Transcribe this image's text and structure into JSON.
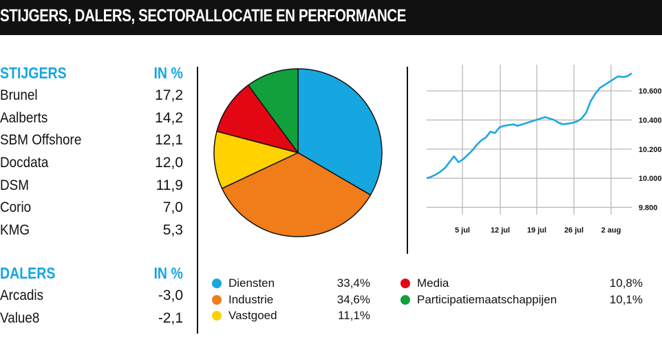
{
  "header": {
    "title": "STIJGERS, DALERS, SECTORALLOCATIE EN PERFORMANCE"
  },
  "stijgers": {
    "title": "STIJGERS",
    "unit": "IN %",
    "rows": [
      {
        "name": "Brunel",
        "value": "17,2"
      },
      {
        "name": "Aalberts",
        "value": "14,2"
      },
      {
        "name": "SBM Offshore",
        "value": "12,1"
      },
      {
        "name": "Docdata",
        "value": "12,0"
      },
      {
        "name": "DSM",
        "value": "11,9"
      },
      {
        "name": "Corio",
        "value": "7,0"
      },
      {
        "name": "KMG",
        "value": "5,3"
      }
    ]
  },
  "dalers": {
    "title": "DALERS",
    "unit": "IN %",
    "rows": [
      {
        "name": "Arcadis",
        "value": "-3,0"
      },
      {
        "name": "Value8",
        "value": "-2,1"
      }
    ]
  },
  "chart_data": [
    {
      "type": "pie",
      "slices": [
        {
          "name": "Diensten",
          "value": 33.4,
          "label": "33,4%",
          "color": "#16a6e0"
        },
        {
          "name": "Industrie",
          "value": 34.6,
          "label": "34,6%",
          "color": "#f07c1a"
        },
        {
          "name": "Vastgoed",
          "value": 11.1,
          "label": "11,1%",
          "color": "#ffd200"
        },
        {
          "name": "Media",
          "value": 10.8,
          "label": "10,8%",
          "color": "#e30613"
        },
        {
          "name": "Participatiemaatschappijen",
          "value": 10.1,
          "label": "10,1%",
          "color": "#11a03c"
        }
      ]
    },
    {
      "type": "line",
      "x_ticks": [
        "5 jul",
        "12 jul",
        "19 jul",
        "26 jul",
        "2 aug"
      ],
      "y_ticks": [
        9800,
        10000,
        10200,
        10400,
        10600
      ],
      "y_tick_labels": [
        "9.800",
        "10.000",
        "10.200",
        "10.400",
        "10.600"
      ],
      "ylim": [
        9750,
        10780
      ],
      "grid": true,
      "color": "#1aa7e1",
      "values": [
        10000,
        10010,
        10025,
        10045,
        10070,
        10110,
        10150,
        10110,
        10130,
        10160,
        10190,
        10230,
        10260,
        10280,
        10320,
        10310,
        10350,
        10360,
        10365,
        10370,
        10360,
        10370,
        10380,
        10390,
        10400,
        10410,
        10420,
        10410,
        10400,
        10380,
        10370,
        10375,
        10380,
        10390,
        10410,
        10450,
        10530,
        10580,
        10620,
        10640,
        10660,
        10680,
        10700,
        10695,
        10700,
        10720
      ]
    }
  ]
}
